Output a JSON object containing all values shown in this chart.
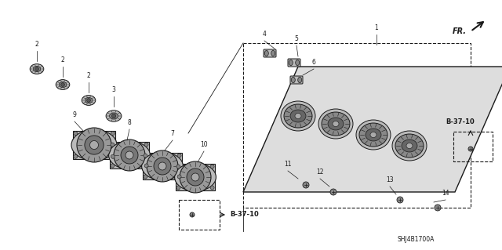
{
  "background_color": "#ffffff",
  "diagram_code": "SHJ4B1700A",
  "fr_arrow_text": "FR.",
  "b3710_text": "B-37-10",
  "line_color": "#1a1a1a",
  "text_color": "#1a1a1a",
  "gray_dark": "#555555",
  "gray_mid": "#888888",
  "gray_light": "#bbbbbb",
  "gray_panel": "#cccccc"
}
